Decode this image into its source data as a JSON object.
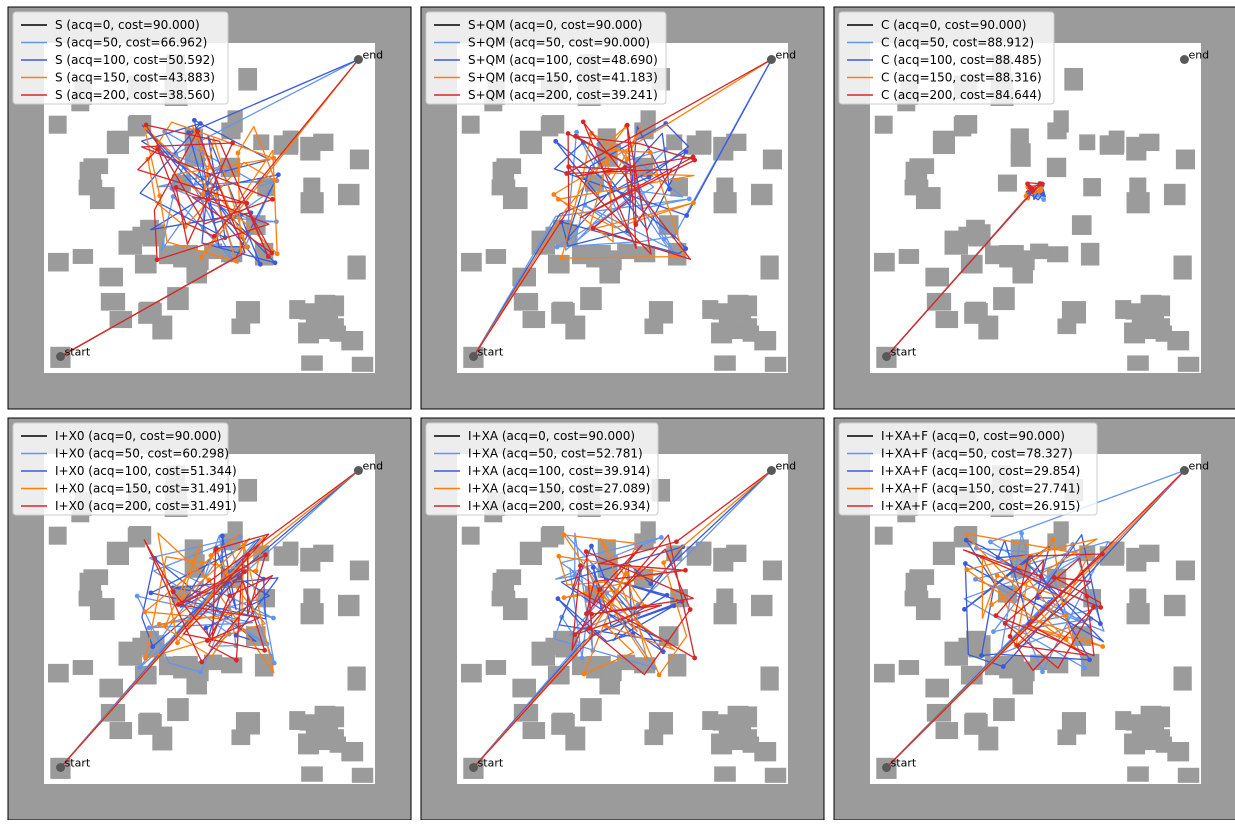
{
  "colors": {
    "wall": "#9b9b9b",
    "free": "#ffffff",
    "marker": "#595959",
    "acq0": "#000000",
    "acq50": "#6495ed",
    "acq100": "#3a5bd9",
    "acq150": "#ff7f0e",
    "acq200": "#d62728"
  },
  "chart_data": [
    {
      "type": "line",
      "title": "",
      "start_label": "start",
      "end_label": "end",
      "start": [
        0.05,
        0.05
      ],
      "end": [
        0.95,
        0.95
      ],
      "legend": [
        "S (acq=0, cost=90.000)",
        "S (acq=50, cost=66.962)",
        "S (acq=100, cost=50.592)",
        "S (acq=150, cost=43.883)",
        "S (acq=200, cost=38.560)"
      ],
      "series": [
        {
          "acq": 0,
          "cost": 90.0
        },
        {
          "acq": 50,
          "cost": 66.962
        },
        {
          "acq": 100,
          "cost": 50.592
        },
        {
          "acq": 150,
          "cost": 43.883
        },
        {
          "acq": 200,
          "cost": 38.56
        }
      ]
    },
    {
      "type": "line",
      "title": "",
      "start_label": "start",
      "end_label": "end",
      "start": [
        0.05,
        0.05
      ],
      "end": [
        0.95,
        0.95
      ],
      "legend": [
        "S+QM (acq=0, cost=90.000)",
        "S+QM (acq=50, cost=90.000)",
        "S+QM (acq=100, cost=48.690)",
        "S+QM (acq=150, cost=41.183)",
        "S+QM (acq=200, cost=39.241)"
      ],
      "series": [
        {
          "acq": 0,
          "cost": 90.0
        },
        {
          "acq": 50,
          "cost": 90.0
        },
        {
          "acq": 100,
          "cost": 48.69
        },
        {
          "acq": 150,
          "cost": 41.183
        },
        {
          "acq": 200,
          "cost": 39.241
        }
      ]
    },
    {
      "type": "line",
      "title": "",
      "start_label": "start",
      "end_label": "end",
      "start": [
        0.05,
        0.05
      ],
      "end": [
        0.95,
        0.95
      ],
      "legend": [
        "C (acq=0, cost=90.000)",
        "C (acq=50, cost=88.912)",
        "C (acq=100, cost=88.485)",
        "C (acq=150, cost=88.316)",
        "C (acq=200, cost=84.644)"
      ],
      "series": [
        {
          "acq": 0,
          "cost": 90.0
        },
        {
          "acq": 50,
          "cost": 88.912
        },
        {
          "acq": 100,
          "cost": 88.485
        },
        {
          "acq": 150,
          "cost": 88.316
        },
        {
          "acq": 200,
          "cost": 84.644
        }
      ]
    },
    {
      "type": "line",
      "title": "",
      "start_label": "start",
      "end_label": "end",
      "start": [
        0.05,
        0.05
      ],
      "end": [
        0.95,
        0.95
      ],
      "legend": [
        "I+X0 (acq=0, cost=90.000)",
        "I+X0 (acq=50, cost=60.298)",
        "I+X0 (acq=100, cost=51.344)",
        "I+X0 (acq=150, cost=31.491)",
        "I+X0 (acq=200, cost=31.491)"
      ],
      "series": [
        {
          "acq": 0,
          "cost": 90.0
        },
        {
          "acq": 50,
          "cost": 60.298
        },
        {
          "acq": 100,
          "cost": 51.344
        },
        {
          "acq": 150,
          "cost": 31.491
        },
        {
          "acq": 200,
          "cost": 31.491
        }
      ]
    },
    {
      "type": "line",
      "title": "",
      "start_label": "start",
      "end_label": "end",
      "start": [
        0.05,
        0.05
      ],
      "end": [
        0.95,
        0.95
      ],
      "legend": [
        "I+XA (acq=0, cost=90.000)",
        "I+XA (acq=50, cost=52.781)",
        "I+XA (acq=100, cost=39.914)",
        "I+XA (acq=150, cost=27.089)",
        "I+XA (acq=200, cost=26.934)"
      ],
      "series": [
        {
          "acq": 0,
          "cost": 90.0
        },
        {
          "acq": 50,
          "cost": 52.781
        },
        {
          "acq": 100,
          "cost": 39.914
        },
        {
          "acq": 150,
          "cost": 27.089
        },
        {
          "acq": 200,
          "cost": 26.934
        }
      ]
    },
    {
      "type": "line",
      "title": "",
      "start_label": "start",
      "end_label": "end",
      "start": [
        0.05,
        0.05
      ],
      "end": [
        0.95,
        0.95
      ],
      "legend": [
        "I+XA+F (acq=0, cost=90.000)",
        "I+XA+F (acq=50, cost=78.327)",
        "I+XA+F (acq=100, cost=29.854)",
        "I+XA+F (acq=150, cost=27.741)",
        "I+XA+F (acq=200, cost=26.915)"
      ],
      "series": [
        {
          "acq": 0,
          "cost": 90.0
        },
        {
          "acq": 50,
          "cost": 78.327
        },
        {
          "acq": 100,
          "cost": 29.854
        },
        {
          "acq": 150,
          "cost": 27.741
        },
        {
          "acq": 200,
          "cost": 26.915
        }
      ]
    }
  ]
}
